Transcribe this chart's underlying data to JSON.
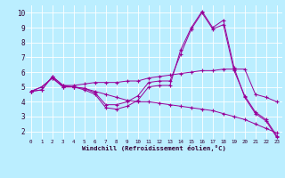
{
  "xlabel": "Windchill (Refroidissement éolien,°C)",
  "background_color": "#bbeeff",
  "line_color": "#990099",
  "xlim": [
    -0.5,
    23.5
  ],
  "ylim": [
    1.5,
    10.5
  ],
  "yticks": [
    2,
    3,
    4,
    5,
    6,
    7,
    8,
    9,
    10
  ],
  "xticks": [
    0,
    1,
    2,
    3,
    4,
    5,
    6,
    7,
    8,
    9,
    10,
    11,
    12,
    13,
    14,
    15,
    16,
    17,
    18,
    19,
    20,
    21,
    22,
    23
  ],
  "series": [
    {
      "x": [
        0,
        1,
        2,
        3,
        4,
        5,
        6,
        7,
        8,
        9,
        10,
        11,
        12,
        13,
        14,
        15,
        16,
        17,
        18,
        19,
        20,
        21,
        22,
        23
      ],
      "y": [
        4.7,
        5.0,
        5.6,
        5.0,
        5.0,
        4.8,
        4.5,
        3.6,
        3.5,
        3.7,
        4.1,
        5.0,
        5.1,
        5.1,
        7.5,
        9.0,
        10.1,
        9.0,
        9.5,
        6.3,
        4.3,
        3.2,
        2.7,
        1.6
      ]
    },
    {
      "x": [
        0,
        1,
        2,
        3,
        4,
        5,
        6,
        7,
        8,
        9,
        10,
        11,
        12,
        13,
        14,
        15,
        16,
        17,
        18,
        19,
        20,
        21,
        22,
        23
      ],
      "y": [
        4.7,
        5.0,
        5.6,
        5.0,
        5.0,
        4.9,
        4.6,
        3.8,
        3.8,
        4.0,
        4.4,
        5.3,
        5.4,
        5.4,
        7.2,
        8.9,
        10.0,
        8.9,
        9.2,
        6.1,
        4.4,
        3.3,
        2.8,
        1.7
      ]
    },
    {
      "x": [
        0,
        1,
        2,
        3,
        4,
        5,
        6,
        7,
        8,
        9,
        10,
        11,
        12,
        13,
        14,
        15,
        16,
        17,
        18,
        19,
        20,
        21,
        22,
        23
      ],
      "y": [
        4.7,
        4.8,
        5.7,
        5.1,
        5.1,
        5.2,
        5.3,
        5.3,
        5.3,
        5.4,
        5.4,
        5.6,
        5.7,
        5.8,
        5.9,
        6.0,
        6.1,
        6.1,
        6.2,
        6.2,
        6.2,
        4.5,
        4.3,
        4.0
      ]
    },
    {
      "x": [
        0,
        1,
        2,
        3,
        4,
        5,
        6,
        7,
        8,
        9,
        10,
        11,
        12,
        13,
        14,
        15,
        16,
        17,
        18,
        19,
        20,
        21,
        22,
        23
      ],
      "y": [
        4.7,
        4.8,
        5.7,
        5.1,
        5.0,
        4.9,
        4.7,
        4.5,
        4.3,
        4.1,
        4.0,
        4.0,
        3.9,
        3.8,
        3.7,
        3.6,
        3.5,
        3.4,
        3.2,
        3.0,
        2.8,
        2.5,
        2.2,
        1.9
      ]
    }
  ]
}
